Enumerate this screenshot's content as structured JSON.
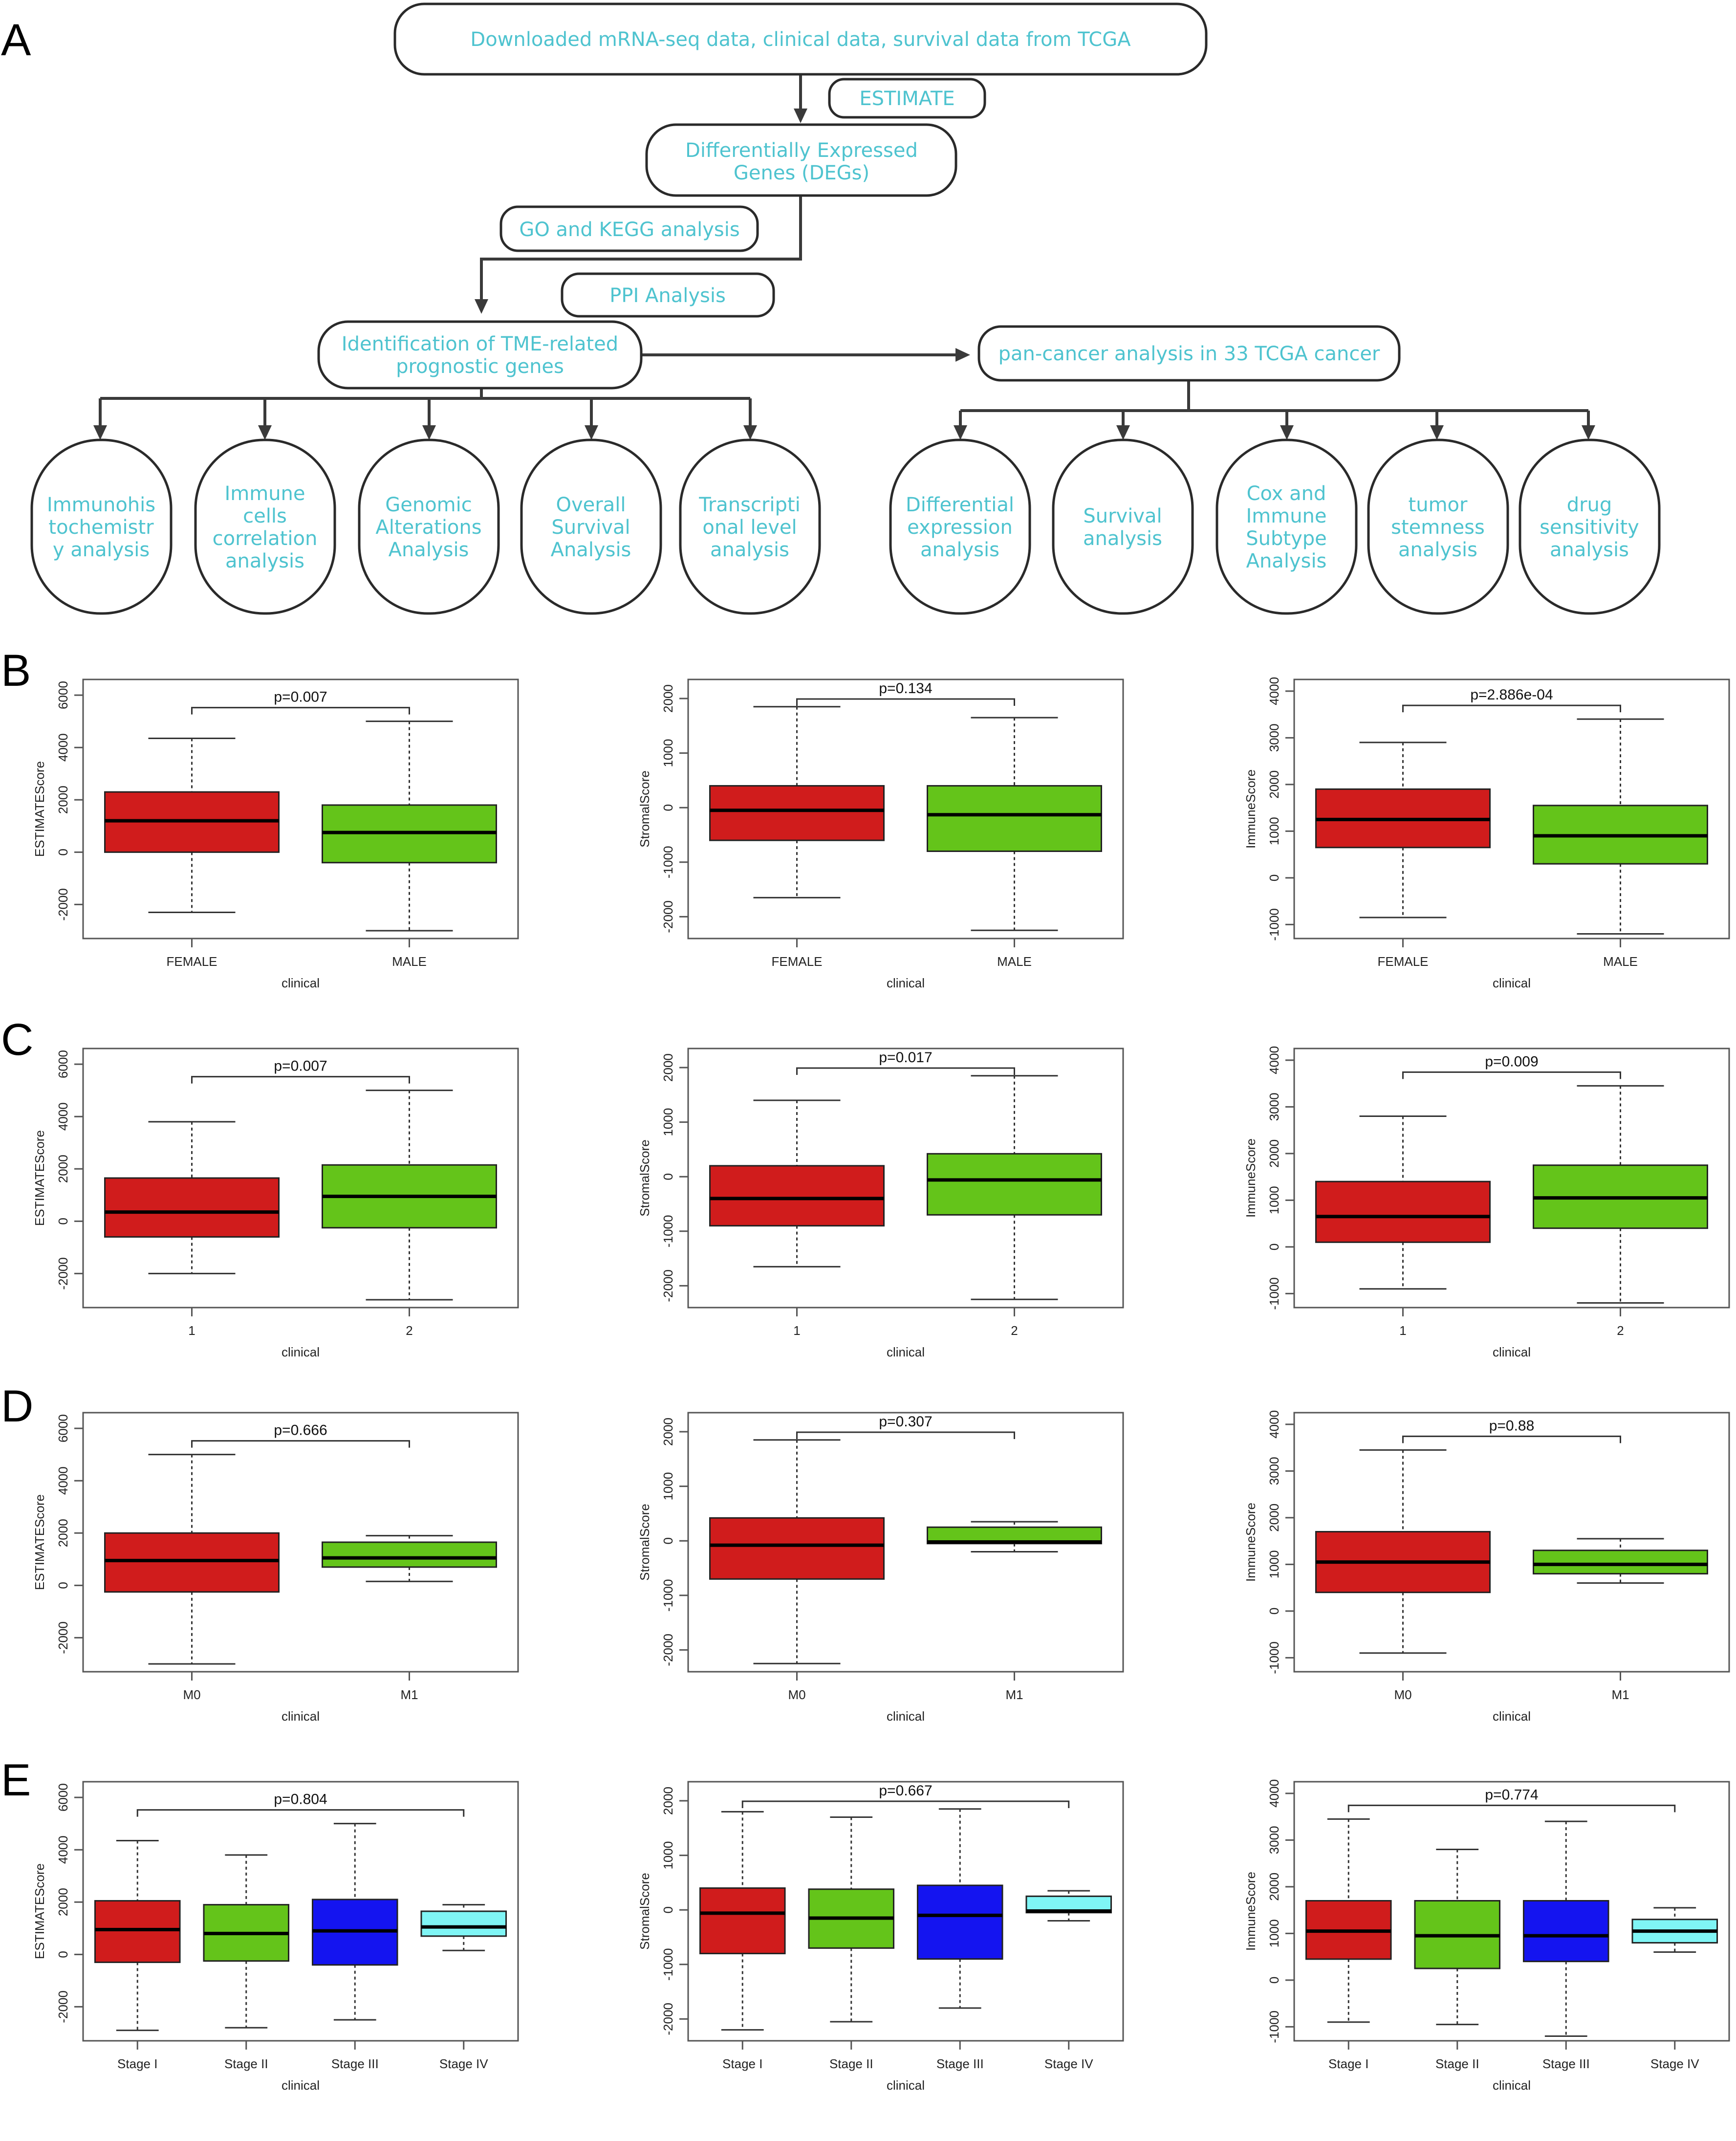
{
  "panels": {
    "a": "A",
    "b": "B",
    "c": "C",
    "d": "D",
    "e": "E"
  },
  "flowchart": {
    "top": "Downloaded mRNA-seq data, clinical data, survival data from TCGA",
    "estimate": "ESTIMATE",
    "degs": [
      "Differentially Expressed",
      "Genes (DEGs)"
    ],
    "go_kegg": "GO and KEGG analysis",
    "ppi": "PPI Analysis",
    "tme": [
      "Identification of TME-related",
      "prognostic genes"
    ],
    "pancancer": "pan-cancer analysis in 33 TCGA cancer",
    "left_leaves": [
      [
        "Immunohis",
        "tochemistr",
        "y analysis"
      ],
      [
        "Immune",
        "cells",
        "correlation",
        "analysis"
      ],
      [
        "Genomic",
        "Alterations",
        "Analysis"
      ],
      [
        "Overall",
        "Survival",
        "Analysis"
      ],
      [
        "Transcripti",
        "onal level",
        "analysis"
      ]
    ],
    "right_leaves": [
      [
        "Differential",
        "expression",
        "analysis"
      ],
      [
        "Survival",
        "analysis"
      ],
      [
        "Cox and",
        "Immune",
        "Subtype",
        "Analysis"
      ],
      [
        "tumor",
        "stemness",
        "analysis"
      ],
      [
        "drug",
        "sensitivity",
        "analysis"
      ]
    ]
  },
  "colors": {
    "red": "#d01c1c",
    "green": "#64c41a",
    "blue": "#1414f0",
    "cyan": "#7ff5f5",
    "flow_text": "#4ec3cf"
  },
  "chart_data": [
    {
      "panel": "B",
      "type": "boxplot",
      "xlabel": "clinical",
      "ylabel": "ESTIMATEScore",
      "ylim": [
        -3300,
        6600
      ],
      "yticks": [
        "-2000",
        "0",
        "2000",
        "4000",
        "6000"
      ],
      "categories": [
        "FEMALE",
        "MALE"
      ],
      "pvalue": "p=0.007",
      "boxes": [
        {
          "min": -2300,
          "q1": 0,
          "median": 1200,
          "q3": 2300,
          "max": 4350,
          "color": "red"
        },
        {
          "min": -3000,
          "q1": -400,
          "median": 750,
          "q3": 1800,
          "max": 5000,
          "color": "green"
        }
      ]
    },
    {
      "panel": "B",
      "type": "boxplot",
      "xlabel": "clinical",
      "ylabel": "StromalScore",
      "ylim": [
        -2400,
        2350
      ],
      "yticks": [
        "-2000",
        "-1000",
        "0",
        "1000",
        "2000"
      ],
      "categories": [
        "FEMALE",
        "MALE"
      ],
      "pvalue": "p=0.134",
      "boxes": [
        {
          "min": -1650,
          "q1": -600,
          "median": -50,
          "q3": 400,
          "max": 1850,
          "color": "red"
        },
        {
          "min": -2250,
          "q1": -800,
          "median": -130,
          "q3": 400,
          "max": 1650,
          "color": "green"
        }
      ]
    },
    {
      "panel": "B",
      "type": "boxplot",
      "xlabel": "clinical",
      "ylabel": "ImmuneScore",
      "ylim": [
        -1300,
        4250
      ],
      "yticks": [
        "-1000",
        "0",
        "1000",
        "2000",
        "3000",
        "4000"
      ],
      "categories": [
        "FEMALE",
        "MALE"
      ],
      "pvalue": "p=2.886e-04",
      "boxes": [
        {
          "min": -850,
          "q1": 650,
          "median": 1250,
          "q3": 1900,
          "max": 2900,
          "color": "red"
        },
        {
          "min": -1200,
          "q1": 300,
          "median": 900,
          "q3": 1550,
          "max": 3400,
          "color": "green"
        }
      ]
    },
    {
      "panel": "C",
      "type": "boxplot",
      "xlabel": "clinical",
      "ylabel": "ESTIMATEScore",
      "ylim": [
        -3300,
        6600
      ],
      "yticks": [
        "-2000",
        "0",
        "2000",
        "4000",
        "6000"
      ],
      "categories": [
        "1",
        "2"
      ],
      "pvalue": "p=0.007",
      "boxes": [
        {
          "min": -2000,
          "q1": -600,
          "median": 350,
          "q3": 1650,
          "max": 3800,
          "color": "red"
        },
        {
          "min": -3000,
          "q1": -250,
          "median": 950,
          "q3": 2150,
          "max": 5000,
          "color": "green"
        }
      ]
    },
    {
      "panel": "C",
      "type": "boxplot",
      "xlabel": "clinical",
      "ylabel": "StromalScore",
      "ylim": [
        -2400,
        2350
      ],
      "yticks": [
        "-2000",
        "-1000",
        "0",
        "1000",
        "2000"
      ],
      "categories": [
        "1",
        "2"
      ],
      "pvalue": "p=0.017",
      "boxes": [
        {
          "min": -1650,
          "q1": -900,
          "median": -400,
          "q3": 200,
          "max": 1400,
          "color": "red"
        },
        {
          "min": -2250,
          "q1": -700,
          "median": -60,
          "q3": 420,
          "max": 1850,
          "color": "green"
        }
      ]
    },
    {
      "panel": "C",
      "type": "boxplot",
      "xlabel": "clinical",
      "ylabel": "ImmuneScore",
      "ylim": [
        -1300,
        4250
      ],
      "yticks": [
        "-1000",
        "0",
        "1000",
        "2000",
        "3000",
        "4000"
      ],
      "categories": [
        "1",
        "2"
      ],
      "pvalue": "p=0.009",
      "boxes": [
        {
          "min": -900,
          "q1": 100,
          "median": 650,
          "q3": 1400,
          "max": 2800,
          "color": "red"
        },
        {
          "min": -1200,
          "q1": 400,
          "median": 1050,
          "q3": 1750,
          "max": 3450,
          "color": "green"
        }
      ]
    },
    {
      "panel": "D",
      "type": "boxplot",
      "xlabel": "clinical",
      "ylabel": "ESTIMATEScore",
      "ylim": [
        -3300,
        6600
      ],
      "yticks": [
        "-2000",
        "0",
        "2000",
        "4000",
        "6000"
      ],
      "categories": [
        "M0",
        "M1"
      ],
      "pvalue": "p=0.666",
      "boxes": [
        {
          "min": -3000,
          "q1": -250,
          "median": 950,
          "q3": 2000,
          "max": 5000,
          "color": "red"
        },
        {
          "min": 150,
          "q1": 700,
          "median": 1050,
          "q3": 1650,
          "max": 1900,
          "color": "green"
        }
      ]
    },
    {
      "panel": "D",
      "type": "boxplot",
      "xlabel": "clinical",
      "ylabel": "StromalScore",
      "ylim": [
        -2400,
        2350
      ],
      "yticks": [
        "-2000",
        "-1000",
        "0",
        "1000",
        "2000"
      ],
      "categories": [
        "M0",
        "M1"
      ],
      "pvalue": "p=0.307",
      "boxes": [
        {
          "min": -2250,
          "q1": -700,
          "median": -80,
          "q3": 420,
          "max": 1850,
          "color": "red"
        },
        {
          "min": -200,
          "q1": -50,
          "median": -20,
          "q3": 250,
          "max": 350,
          "color": "green"
        }
      ]
    },
    {
      "panel": "D",
      "type": "boxplot",
      "xlabel": "clinical",
      "ylabel": "ImmuneScore",
      "ylim": [
        -1300,
        4250
      ],
      "yticks": [
        "-1000",
        "0",
        "1000",
        "2000",
        "3000",
        "4000"
      ],
      "categories": [
        "M0",
        "M1"
      ],
      "pvalue": "p=0.88",
      "boxes": [
        {
          "min": -900,
          "q1": 400,
          "median": 1050,
          "q3": 1700,
          "max": 3450,
          "color": "red"
        },
        {
          "min": 600,
          "q1": 800,
          "median": 1000,
          "q3": 1300,
          "max": 1550,
          "color": "green"
        }
      ]
    },
    {
      "panel": "E",
      "type": "boxplot",
      "xlabel": "clinical",
      "ylabel": "ESTIMATEScore",
      "ylim": [
        -3300,
        6600
      ],
      "yticks": [
        "-2000",
        "0",
        "2000",
        "4000",
        "6000"
      ],
      "categories": [
        "Stage I",
        "Stage II",
        "Stage III",
        "Stage IV"
      ],
      "pvalue": "p=0.804",
      "boxes": [
        {
          "min": -2900,
          "q1": -300,
          "median": 950,
          "q3": 2050,
          "max": 4350,
          "color": "red"
        },
        {
          "min": -2800,
          "q1": -250,
          "median": 800,
          "q3": 1900,
          "max": 3800,
          "color": "green"
        },
        {
          "min": -2500,
          "q1": -400,
          "median": 900,
          "q3": 2100,
          "max": 5000,
          "color": "blue"
        },
        {
          "min": 150,
          "q1": 700,
          "median": 1050,
          "q3": 1650,
          "max": 1900,
          "color": "cyan"
        }
      ]
    },
    {
      "panel": "E",
      "type": "boxplot",
      "xlabel": "clinical",
      "ylabel": "StromalScore",
      "ylim": [
        -2400,
        2350
      ],
      "yticks": [
        "-2000",
        "-1000",
        "0",
        "1000",
        "2000"
      ],
      "categories": [
        "Stage I",
        "Stage II",
        "Stage III",
        "Stage IV"
      ],
      "pvalue": "p=0.667",
      "boxes": [
        {
          "min": -2200,
          "q1": -800,
          "median": -60,
          "q3": 400,
          "max": 1800,
          "color": "red"
        },
        {
          "min": -2050,
          "q1": -700,
          "median": -150,
          "q3": 380,
          "max": 1700,
          "color": "green"
        },
        {
          "min": -1800,
          "q1": -900,
          "median": -100,
          "q3": 450,
          "max": 1850,
          "color": "blue"
        },
        {
          "min": -200,
          "q1": -50,
          "median": -20,
          "q3": 250,
          "max": 350,
          "color": "cyan"
        }
      ]
    },
    {
      "panel": "E",
      "type": "boxplot",
      "xlabel": "clinical",
      "ylabel": "ImmuneScore",
      "ylim": [
        -1300,
        4250
      ],
      "yticks": [
        "-1000",
        "0",
        "1000",
        "2000",
        "3000",
        "4000"
      ],
      "categories": [
        "Stage I",
        "Stage II",
        "Stage III",
        "Stage IV"
      ],
      "pvalue": "p=0.774",
      "boxes": [
        {
          "min": -900,
          "q1": 450,
          "median": 1050,
          "q3": 1700,
          "max": 3450,
          "color": "red"
        },
        {
          "min": -950,
          "q1": 250,
          "median": 950,
          "q3": 1700,
          "max": 2800,
          "color": "green"
        },
        {
          "min": -1200,
          "q1": 400,
          "median": 950,
          "q3": 1700,
          "max": 3400,
          "color": "blue"
        },
        {
          "min": 600,
          "q1": 800,
          "median": 1050,
          "q3": 1300,
          "max": 1550,
          "color": "cyan"
        }
      ]
    }
  ]
}
